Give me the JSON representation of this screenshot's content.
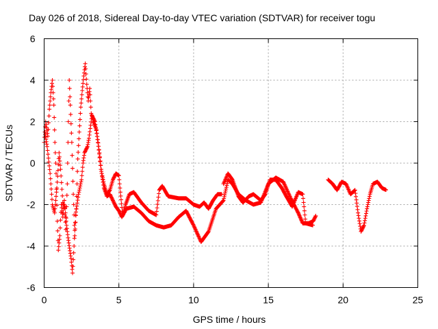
{
  "chart_data": {
    "type": "scatter",
    "title": "Day 026 of 2018, Sidereal Day-to-day VTEC variation (SDTVAR) for receiver togu",
    "xlabel": "GPS time / hours",
    "ylabel": "SDTVAR / TECUs",
    "xlim": [
      0,
      25
    ],
    "ylim": [
      -6,
      6
    ],
    "x_ticks": [
      "0",
      "5",
      "10",
      "15",
      "20",
      "25"
    ],
    "y_ticks": [
      "-6",
      "-4",
      "-2",
      "0",
      "2",
      "4",
      "6"
    ],
    "grid": true,
    "marker": "+",
    "series_color": "#ff0000",
    "series": [
      {
        "name": "SDTVAR",
        "trace": [
          [
            0.0,
            1.0
          ],
          [
            0.1,
            2.0
          ],
          [
            0.25,
            1.3
          ],
          [
            0.35,
            2.6
          ],
          [
            0.45,
            3.4
          ],
          [
            0.55,
            4.0
          ],
          [
            0.65,
            2.8
          ],
          [
            0.72,
            1.0
          ],
          [
            0.8,
            -0.5
          ],
          [
            0.88,
            -2.8
          ],
          [
            0.95,
            -4.2
          ],
          [
            1.05,
            -3.5
          ],
          [
            1.15,
            -2.0
          ],
          [
            1.25,
            -2.6
          ],
          [
            1.35,
            -1.8
          ],
          [
            1.45,
            -3.2
          ],
          [
            1.55,
            -1.0
          ],
          [
            1.62,
            2.0
          ],
          [
            1.68,
            4.0
          ],
          [
            1.75,
            2.8
          ],
          [
            1.85,
            1.0
          ],
          [
            1.95,
            -1.5
          ],
          [
            2.05,
            -3.5
          ],
          [
            2.15,
            -2.2
          ],
          [
            2.25,
            0.2
          ],
          [
            2.35,
            1.5
          ],
          [
            2.45,
            2.7
          ],
          [
            2.55,
            3.5
          ],
          [
            2.65,
            4.2
          ],
          [
            2.75,
            4.8
          ],
          [
            2.85,
            3.8
          ],
          [
            2.95,
            3.0
          ],
          [
            3.05,
            3.6
          ],
          [
            3.15,
            2.4
          ],
          [
            3.3,
            2.0
          ],
          [
            3.5,
            1.6
          ],
          [
            3.7,
            0.5
          ],
          [
            3.85,
            -0.5
          ],
          [
            4.0,
            -1.2
          ],
          [
            4.2,
            -1.6
          ],
          [
            4.4,
            -1.5
          ],
          [
            4.6,
            -1.8
          ],
          [
            4.8,
            -2.1
          ],
          [
            5.0,
            -2.3
          ],
          [
            5.2,
            -2.6
          ],
          [
            5.5,
            -2.2
          ],
          [
            6.0,
            -2.1
          ],
          [
            6.5,
            -2.4
          ],
          [
            7.0,
            -2.8
          ],
          [
            7.5,
            -3.0
          ],
          [
            8.0,
            -3.1
          ],
          [
            8.5,
            -3.0
          ],
          [
            9.0,
            -2.6
          ],
          [
            9.5,
            -2.3
          ],
          [
            10.0,
            -3.0
          ],
          [
            10.5,
            -3.8
          ],
          [
            11.0,
            -3.3
          ],
          [
            11.5,
            -2.2
          ],
          [
            12.0,
            -1.8
          ],
          [
            12.3,
            -0.8
          ],
          [
            12.6,
            -1.0
          ],
          [
            13.0,
            -1.5
          ],
          [
            13.5,
            -1.8
          ],
          [
            14.0,
            -2.0
          ],
          [
            14.5,
            -1.9
          ],
          [
            15.0,
            -1.0
          ],
          [
            15.5,
            -0.7
          ],
          [
            16.0,
            -0.9
          ],
          [
            16.5,
            -1.7
          ],
          [
            17.0,
            -2.4
          ],
          [
            17.3,
            -2.9
          ],
          [
            17.7,
            -2.9
          ],
          [
            18.0,
            -2.8
          ],
          [
            18.2,
            -2.5
          ]
        ],
        "trace2": [
          [
            0.05,
            1.5
          ],
          [
            0.2,
            0.8
          ],
          [
            0.4,
            -0.5
          ],
          [
            0.55,
            -2.0
          ],
          [
            0.7,
            -2.4
          ],
          [
            0.85,
            -1.2
          ],
          [
            1.0,
            0.5
          ],
          [
            1.1,
            -0.3
          ],
          [
            1.25,
            -1.9
          ],
          [
            1.4,
            -2.2
          ],
          [
            1.5,
            -3.0
          ],
          [
            1.6,
            -3.6
          ],
          [
            1.7,
            -4.1
          ],
          [
            1.8,
            -4.6
          ],
          [
            1.9,
            -5.3
          ],
          [
            2.0,
            -4.0
          ],
          [
            2.1,
            -2.5
          ],
          [
            2.3,
            -1.5
          ],
          [
            2.5,
            -0.8
          ],
          [
            2.6,
            0.0
          ],
          [
            2.7,
            0.5
          ],
          [
            2.9,
            0.8
          ],
          [
            3.0,
            1.2
          ],
          [
            3.2,
            2.3
          ],
          [
            3.4,
            2.0
          ],
          [
            3.6,
            1.0
          ],
          [
            3.8,
            -0.3
          ],
          [
            4.0,
            -1.0
          ],
          [
            4.2,
            -1.5
          ],
          [
            4.4,
            -1.3
          ],
          [
            4.6,
            -0.8
          ],
          [
            4.8,
            -0.5
          ],
          [
            5.0,
            -0.6
          ],
          [
            5.1,
            -1.4
          ],
          [
            5.25,
            -2.5
          ],
          [
            5.45,
            -2.0
          ],
          [
            5.7,
            -1.5
          ],
          [
            6.0,
            -1.4
          ],
          [
            6.5,
            -1.9
          ],
          [
            7.0,
            -2.3
          ],
          [
            7.5,
            -2.5
          ],
          [
            7.7,
            -1.3
          ],
          [
            7.9,
            -1.1
          ],
          [
            8.3,
            -1.6
          ],
          [
            9.0,
            -1.7
          ],
          [
            9.5,
            -1.7
          ],
          [
            10.0,
            -2.0
          ],
          [
            10.4,
            -2.1
          ],
          [
            10.7,
            -1.9
          ],
          [
            11.0,
            -2.2
          ],
          [
            11.3,
            -1.8
          ],
          [
            11.6,
            -1.5
          ],
          [
            11.9,
            -1.5
          ]
        ],
        "trace3": [
          [
            12.0,
            -1.0
          ],
          [
            12.3,
            -0.5
          ],
          [
            12.6,
            -0.8
          ],
          [
            13.0,
            -1.6
          ],
          [
            13.3,
            -1.9
          ],
          [
            13.7,
            -1.6
          ],
          [
            14.0,
            -1.5
          ],
          [
            14.5,
            -1.8
          ],
          [
            14.8,
            -1.5
          ],
          [
            15.1,
            -0.8
          ],
          [
            15.5,
            -0.8
          ],
          [
            15.9,
            -1.2
          ],
          [
            16.2,
            -1.6
          ],
          [
            16.6,
            -2.1
          ],
          [
            17.0,
            -1.4
          ],
          [
            17.3,
            -1.5
          ],
          [
            17.5,
            -2.9
          ],
          [
            18.0,
            -3.0
          ]
        ],
        "trace4": [
          [
            19.0,
            -0.8
          ],
          [
            19.3,
            -1.0
          ],
          [
            19.6,
            -1.3
          ],
          [
            19.9,
            -0.9
          ],
          [
            20.2,
            -1.0
          ],
          [
            20.5,
            -1.5
          ],
          [
            20.8,
            -1.3
          ],
          [
            21.0,
            -2.4
          ],
          [
            21.2,
            -3.3
          ],
          [
            21.4,
            -3.0
          ],
          [
            21.6,
            -2.2
          ],
          [
            21.8,
            -1.5
          ],
          [
            22.0,
            -1.0
          ],
          [
            22.3,
            -0.9
          ],
          [
            22.6,
            -1.2
          ],
          [
            22.9,
            -1.3
          ]
        ]
      }
    ]
  }
}
